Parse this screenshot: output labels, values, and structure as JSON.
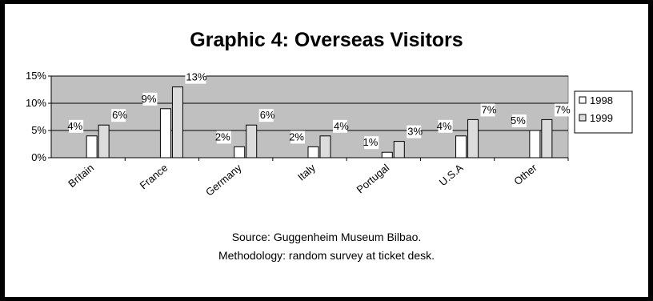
{
  "chart_data": {
    "type": "bar",
    "title": "Graphic 4: Overseas Visitors",
    "xlabel": "",
    "ylabel": "",
    "categories": [
      "Britain",
      "France",
      "Germany",
      "Italy",
      "Portugal",
      "U.S.A",
      "Other"
    ],
    "series": [
      {
        "name": "1998",
        "values": [
          4,
          9,
          2,
          2,
          1,
          4,
          5
        ],
        "labels": [
          "4%",
          "9%",
          "2%",
          "2%",
          "1%",
          "4%",
          "5%"
        ],
        "color": "#ffffff"
      },
      {
        "name": "1999",
        "values": [
          6,
          13,
          6,
          4,
          3,
          7,
          7
        ],
        "labels": [
          "6%",
          "13%",
          "6%",
          "4%",
          "3%",
          "7%",
          "7%"
        ],
        "color": "#dcdcdc"
      }
    ],
    "y_ticks": [
      0,
      5,
      10,
      15
    ],
    "y_tick_labels": [
      "0%",
      "5%",
      "10%",
      "15%"
    ],
    "ylim": [
      0,
      15
    ],
    "grid": true,
    "plot_background": "#c0c0c0",
    "legend": "right"
  },
  "notes": {
    "source": "Source: Guggenheim Museum Bilbao.",
    "methodology": "Methodology: random survey at ticket desk."
  }
}
